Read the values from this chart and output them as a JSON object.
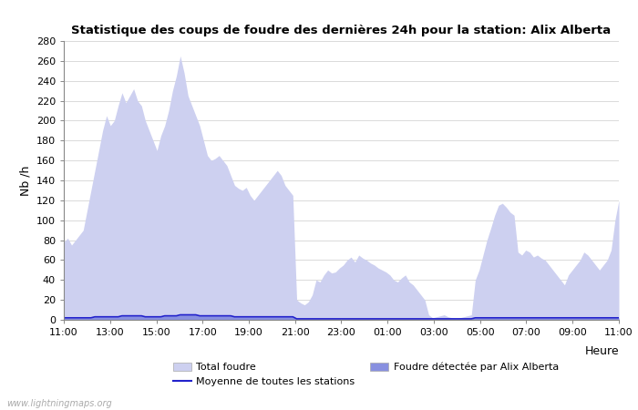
{
  "title": "Statistique des coups de foudre des dernières 24h pour la station: Alix Alberta",
  "xlabel": "Heure",
  "ylabel": "Nb /h",
  "watermark": "www.lightningmaps.org",
  "ylim": [
    0,
    280
  ],
  "yticks": [
    0,
    20,
    40,
    60,
    80,
    100,
    120,
    140,
    160,
    180,
    200,
    220,
    240,
    260,
    280
  ],
  "xtick_labels": [
    "11:00",
    "13:00",
    "15:00",
    "17:00",
    "19:00",
    "21:00",
    "23:00",
    "01:00",
    "03:00",
    "05:00",
    "07:00",
    "09:00",
    "11:00"
  ],
  "total_foudre_color": "#cdd0f0",
  "foudre_detectee_color": "#8890e0",
  "moyenne_color": "#2222cc",
  "background_color": "#ffffff",
  "legend_labels": [
    "Total foudre",
    "Moyenne de toutes les stations",
    "Foudre détectée par Alix Alberta"
  ],
  "x": [
    0,
    1,
    2,
    3,
    4,
    5,
    6,
    7,
    8,
    9,
    10,
    11,
    12,
    13,
    14,
    15,
    16,
    17,
    18,
    19,
    20,
    21,
    22,
    23,
    24,
    25,
    26,
    27,
    28,
    29,
    30,
    31,
    32,
    33,
    34,
    35,
    36,
    37,
    38,
    39,
    40,
    41,
    42,
    43,
    44,
    45,
    46,
    47,
    48,
    49,
    50,
    51,
    52,
    53,
    54,
    55,
    56,
    57,
    58,
    59,
    60,
    61,
    62,
    63,
    64,
    65,
    66,
    67,
    68,
    69,
    70,
    71,
    72,
    73,
    74,
    75,
    76,
    77,
    78,
    79,
    80,
    81,
    82,
    83,
    84,
    85,
    86,
    87,
    88,
    89,
    90,
    91,
    92,
    93,
    94,
    95,
    96,
    97,
    98,
    99,
    100,
    101,
    102,
    103,
    104,
    105,
    106,
    107,
    108,
    109,
    110,
    111,
    112,
    113,
    114,
    115,
    116,
    117,
    118,
    119,
    120,
    121,
    122,
    123,
    124,
    125,
    126,
    127,
    128,
    129,
    130,
    131,
    132,
    133,
    134,
    135,
    136,
    137,
    138,
    139,
    140,
    141,
    142,
    143
  ],
  "total_foudre": [
    78,
    82,
    75,
    80,
    85,
    90,
    110,
    130,
    150,
    170,
    190,
    205,
    195,
    200,
    215,
    228,
    218,
    225,
    232,
    220,
    215,
    200,
    190,
    180,
    170,
    185,
    195,
    210,
    230,
    245,
    265,
    248,
    225,
    215,
    205,
    195,
    180,
    165,
    160,
    162,
    165,
    160,
    155,
    145,
    135,
    132,
    130,
    133,
    125,
    120,
    125,
    130,
    135,
    140,
    145,
    150,
    145,
    135,
    130,
    125,
    20,
    17,
    15,
    18,
    25,
    40,
    38,
    45,
    50,
    47,
    48,
    52,
    55,
    60,
    63,
    58,
    65,
    62,
    60,
    57,
    55,
    52,
    50,
    48,
    45,
    40,
    38,
    42,
    45,
    38,
    35,
    30,
    25,
    20,
    5,
    2,
    3,
    4,
    5,
    3,
    2,
    1,
    2,
    3,
    4,
    5,
    40,
    50,
    65,
    80,
    92,
    105,
    115,
    117,
    113,
    108,
    105,
    68,
    65,
    70,
    68,
    63,
    65,
    62,
    60,
    55,
    50,
    45,
    40,
    35,
    45,
    50,
    55,
    60,
    68,
    65,
    60,
    55,
    50,
    55,
    60,
    70,
    100,
    120
  ],
  "foudre_detectee": [
    2,
    2,
    2,
    2,
    2,
    2,
    2,
    2,
    3,
    3,
    3,
    3,
    3,
    3,
    3,
    4,
    4,
    4,
    4,
    4,
    4,
    3,
    3,
    3,
    3,
    3,
    4,
    4,
    4,
    4,
    5,
    5,
    5,
    5,
    5,
    4,
    4,
    4,
    4,
    4,
    4,
    4,
    4,
    4,
    3,
    3,
    3,
    3,
    3,
    3,
    3,
    3,
    3,
    3,
    3,
    3,
    3,
    3,
    3,
    3,
    1,
    1,
    1,
    1,
    1,
    1,
    1,
    1,
    1,
    1,
    1,
    1,
    1,
    1,
    1,
    1,
    1,
    1,
    1,
    1,
    1,
    1,
    1,
    1,
    1,
    1,
    1,
    1,
    1,
    1,
    1,
    1,
    1,
    1,
    1,
    1,
    1,
    1,
    1,
    1,
    1,
    1,
    1,
    1,
    1,
    1,
    2,
    2,
    2,
    2,
    2,
    2,
    2,
    2,
    2,
    2,
    2,
    2,
    2,
    2,
    2,
    2,
    2,
    2,
    2,
    2,
    2,
    2,
    2,
    2,
    2,
    2,
    2,
    2,
    2,
    2,
    2,
    2,
    2,
    2,
    2,
    2,
    2,
    2
  ],
  "moyenne": [
    2,
    2,
    2,
    2,
    2,
    2,
    2,
    2,
    3,
    3,
    3,
    3,
    3,
    3,
    3,
    4,
    4,
    4,
    4,
    4,
    4,
    3,
    3,
    3,
    3,
    3,
    4,
    4,
    4,
    4,
    5,
    5,
    5,
    5,
    5,
    4,
    4,
    4,
    4,
    4,
    4,
    4,
    4,
    4,
    3,
    3,
    3,
    3,
    3,
    3,
    3,
    3,
    3,
    3,
    3,
    3,
    3,
    3,
    3,
    3,
    1,
    1,
    1,
    1,
    1,
    1,
    1,
    1,
    1,
    1,
    1,
    1,
    1,
    1,
    1,
    1,
    1,
    1,
    1,
    1,
    1,
    1,
    1,
    1,
    1,
    1,
    1,
    1,
    1,
    1,
    1,
    1,
    1,
    1,
    1,
    1,
    1,
    1,
    1,
    1,
    1,
    1,
    1,
    1,
    1,
    1,
    2,
    2,
    2,
    2,
    2,
    2,
    2,
    2,
    2,
    2,
    2,
    2,
    2,
    2,
    2,
    2,
    2,
    2,
    2,
    2,
    2,
    2,
    2,
    2,
    2,
    2,
    2,
    2,
    2,
    2,
    2,
    2,
    2,
    2,
    2,
    2,
    2,
    2
  ]
}
